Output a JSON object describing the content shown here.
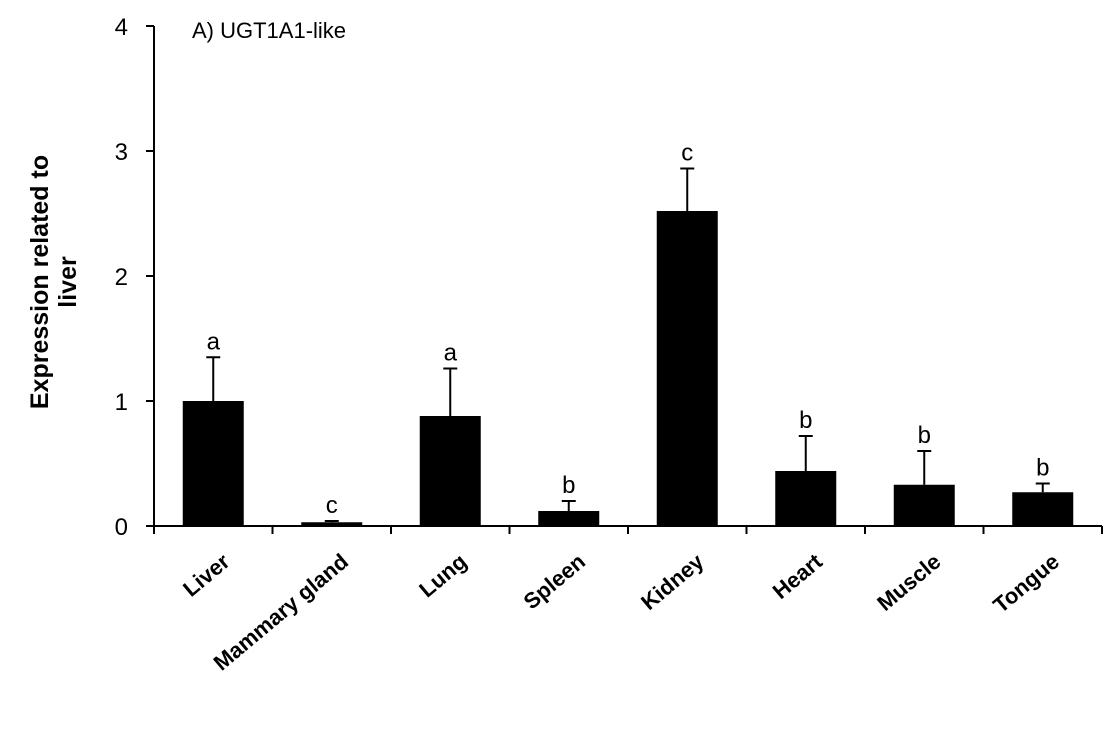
{
  "chart_data": {
    "type": "bar",
    "title": "A) UGT1A1-like",
    "ylabel_lines": [
      "Expression related to",
      "liver"
    ],
    "categories": [
      "Liver",
      "Mammary gland",
      "Lung",
      "Spleen",
      "Kidney",
      "Heart",
      "Muscle",
      "Tongue"
    ],
    "values": [
      1.0,
      0.03,
      0.88,
      0.12,
      2.52,
      0.44,
      0.33,
      0.27
    ],
    "error": [
      0.35,
      0.01,
      0.38,
      0.08,
      0.34,
      0.28,
      0.27,
      0.07
    ],
    "significance": [
      "a",
      "c",
      "a",
      "b",
      "c",
      "b",
      "b",
      "b"
    ],
    "ylim": [
      0,
      4
    ],
    "yticks": [
      0,
      1,
      2,
      3,
      4
    ],
    "bar_color": "#000000",
    "grid": false
  }
}
